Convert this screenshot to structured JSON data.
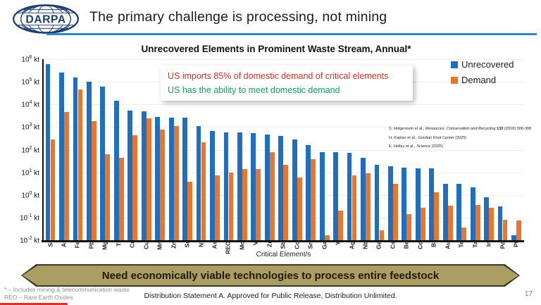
{
  "header": {
    "logo_text": "DARPA",
    "title": "The primary challenge is processing, not mining"
  },
  "chart_data": {
    "type": "bar",
    "title": "Unrecovered Elements in Prominent Waste Stream, Annual*",
    "xlabel": "Critical Element/s",
    "y_unit": "kt",
    "y_scale": "log",
    "ylim": [
      0.01,
      1000000
    ],
    "y_tick_exponents": [
      6,
      5,
      4,
      3,
      2,
      1,
      0,
      -1,
      -2
    ],
    "grid": true,
    "legend_position": "top-right",
    "categories": [
      "Si",
      "Al",
      "Fe",
      "Pb",
      "Mg",
      "Ti",
      "Cr",
      "Cu",
      "Mn",
      "Zn",
      "Sr",
      "Ni",
      "As",
      "REO",
      "Mo",
      "V",
      "Zr",
      "Sb",
      "Co",
      "Sn",
      "Ga",
      "Y",
      "Ag",
      "Nb",
      "Ge",
      "Cs",
      "Be",
      "Cd",
      "Bi",
      "Au",
      "Te",
      "Ta",
      "In",
      "Pd",
      "Pt"
    ],
    "series": [
      {
        "name": "Unrecovered",
        "color": "#1e6fc0",
        "values": [
          600000,
          260000,
          160000,
          100000,
          62000,
          15000,
          5300,
          5100,
          2900,
          2600,
          2600,
          1100,
          690,
          590,
          590,
          540,
          460,
          400,
          280,
          160,
          76,
          78,
          72,
          44,
          22,
          18,
          16,
          15,
          15,
          3.1,
          3.0,
          2.1,
          0.79,
          0.31,
          0.017
        ]
      },
      {
        "name": "Demand",
        "color": "#e8762c",
        "values": [
          280,
          4600,
          45000,
          1800,
          61,
          43,
          430,
          2400,
          790,
          1100,
          3.9,
          220,
          7.3,
          9.8,
          14,
          14,
          78,
          22,
          6.0,
          39,
          0.017,
          0.2,
          7.1,
          9.1,
          0.028,
          3.0,
          0.14,
          0.27,
          1.3,
          0.34,
          0.036,
          0.36,
          0.27,
          0.078,
          0.072
        ]
      }
    ]
  },
  "annotation": {
    "line1": "US imports 85% of domestic demand of critical elements",
    "line1_color": "#cf3427",
    "line2": "US has the ability to meet domestic demand",
    "line2_color": "#13a064"
  },
  "citations": [
    [
      [
        "S. Holgersson et al., ",
        "n"
      ],
      [
        "Resources, Conservation and Recycling ",
        "i"
      ],
      [
        "133",
        "b"
      ],
      [
        " (2018) 300-308",
        "n"
      ]
    ],
    [
      [
        "H. Kaplan et al., ",
        "n"
      ],
      [
        "Gordian Knot Center",
        "i"
      ],
      [
        " (2025)",
        "n"
      ]
    ],
    [
      [
        "E. Holley et al., ",
        "n"
      ],
      [
        "Science",
        "i"
      ],
      [
        " (2025)",
        "n"
      ]
    ]
  ],
  "banner": {
    "text": "Need economically viable technologies to process entire feedstock"
  },
  "footer": {
    "footnote1": "* – Includes mining & telecommunication waste",
    "footnote2": "REO – Rare Earth Oxides",
    "distribution": "Distribution Statement A. Approved for Public Release, Distribution Unlimited.",
    "page": "17"
  }
}
